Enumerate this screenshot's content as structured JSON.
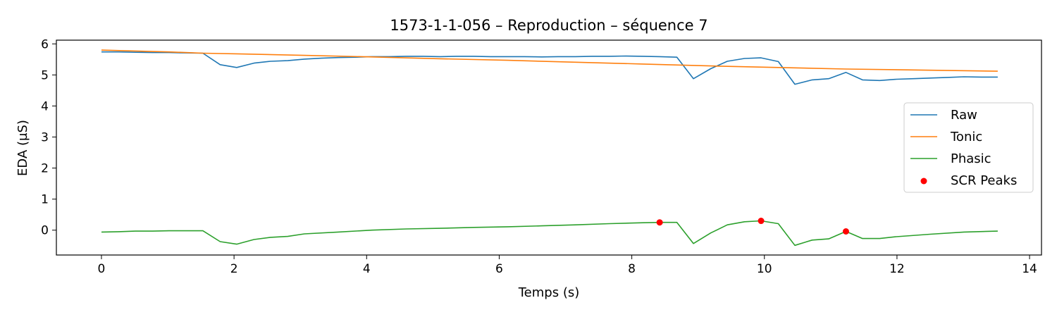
{
  "chart_data": {
    "type": "line",
    "title": "1573-1-1-056 – Reproduction – séquence 7",
    "xlabel": "Temps (s)",
    "ylabel": "EDA (µS)",
    "xlim": [
      -0.68,
      14.18
    ],
    "ylim": [
      -0.8,
      6.12
    ],
    "x_ticks": [
      0,
      2,
      4,
      6,
      8,
      10,
      12,
      14
    ],
    "x_tick_labels": [
      "0",
      "2",
      "4",
      "6",
      "8",
      "10",
      "12",
      "14"
    ],
    "y_ticks": [
      0,
      1,
      2,
      3,
      4,
      5,
      6
    ],
    "y_tick_labels": [
      "0",
      "1",
      "2",
      "3",
      "4",
      "5",
      "6"
    ],
    "grid": false,
    "legend_position": "center-right",
    "series": [
      {
        "name": "Raw",
        "color": "#1f77b4",
        "kind": "line",
        "points": [
          [
            0,
            5.74
          ],
          [
            0.26,
            5.74
          ],
          [
            0.51,
            5.73
          ],
          [
            0.77,
            5.72
          ],
          [
            1.02,
            5.72
          ],
          [
            1.28,
            5.71
          ],
          [
            1.53,
            5.7
          ],
          [
            1.79,
            5.33
          ],
          [
            2.04,
            5.24
          ],
          [
            2.3,
            5.38
          ],
          [
            2.55,
            5.44
          ],
          [
            2.81,
            5.46
          ],
          [
            3.06,
            5.51
          ],
          [
            3.32,
            5.54
          ],
          [
            3.57,
            5.56
          ],
          [
            3.83,
            5.57
          ],
          [
            4.08,
            5.59
          ],
          [
            4.34,
            5.59
          ],
          [
            4.6,
            5.6
          ],
          [
            4.85,
            5.6
          ],
          [
            5.11,
            5.59
          ],
          [
            5.36,
            5.6
          ],
          [
            5.62,
            5.6
          ],
          [
            5.87,
            5.59
          ],
          [
            6.13,
            5.59
          ],
          [
            6.38,
            5.59
          ],
          [
            6.64,
            5.58
          ],
          [
            6.89,
            5.59
          ],
          [
            7.15,
            5.59
          ],
          [
            7.4,
            5.6
          ],
          [
            7.66,
            5.6
          ],
          [
            7.91,
            5.61
          ],
          [
            8.17,
            5.6
          ],
          [
            8.42,
            5.59
          ],
          [
            8.68,
            5.57
          ],
          [
            8.93,
            4.88
          ],
          [
            9.19,
            5.2
          ],
          [
            9.44,
            5.44
          ],
          [
            9.7,
            5.53
          ],
          [
            9.95,
            5.55
          ],
          [
            10.21,
            5.43
          ],
          [
            10.46,
            4.7
          ],
          [
            10.72,
            4.84
          ],
          [
            10.97,
            4.88
          ],
          [
            11.23,
            5.08
          ],
          [
            11.48,
            4.84
          ],
          [
            11.74,
            4.82
          ],
          [
            11.99,
            4.86
          ],
          [
            12.25,
            4.88
          ],
          [
            12.5,
            4.9
          ],
          [
            12.76,
            4.92
          ],
          [
            13.01,
            4.94
          ],
          [
            13.27,
            4.93
          ],
          [
            13.52,
            4.93
          ]
        ]
      },
      {
        "name": "Tonic",
        "color": "#ff7f0e",
        "kind": "line",
        "points": [
          [
            0,
            5.8
          ],
          [
            0.51,
            5.77
          ],
          [
            1.02,
            5.74
          ],
          [
            1.53,
            5.7
          ],
          [
            2.04,
            5.68
          ],
          [
            3.06,
            5.63
          ],
          [
            4.08,
            5.58
          ],
          [
            5.11,
            5.52
          ],
          [
            6.13,
            5.47
          ],
          [
            7.15,
            5.41
          ],
          [
            8.17,
            5.35
          ],
          [
            9.19,
            5.29
          ],
          [
            10.21,
            5.24
          ],
          [
            11.23,
            5.19
          ],
          [
            12.25,
            5.16
          ],
          [
            13.52,
            5.12
          ]
        ]
      },
      {
        "name": "Phasic",
        "color": "#2ca02c",
        "kind": "line",
        "points": [
          [
            0,
            -0.06
          ],
          [
            0.26,
            -0.05
          ],
          [
            0.51,
            -0.03
          ],
          [
            0.77,
            -0.03
          ],
          [
            1.02,
            -0.02
          ],
          [
            1.28,
            -0.02
          ],
          [
            1.53,
            -0.02
          ],
          [
            1.79,
            -0.37
          ],
          [
            2.04,
            -0.45
          ],
          [
            2.3,
            -0.3
          ],
          [
            2.55,
            -0.23
          ],
          [
            2.81,
            -0.2
          ],
          [
            3.06,
            -0.12
          ],
          [
            3.57,
            -0.06
          ],
          [
            4.08,
            0.0
          ],
          [
            4.6,
            0.04
          ],
          [
            5.11,
            0.06
          ],
          [
            5.62,
            0.09
          ],
          [
            6.13,
            0.11
          ],
          [
            6.64,
            0.14
          ],
          [
            7.15,
            0.17
          ],
          [
            7.66,
            0.21
          ],
          [
            8.17,
            0.24
          ],
          [
            8.42,
            0.25
          ],
          [
            8.68,
            0.25
          ],
          [
            8.93,
            -0.43
          ],
          [
            9.19,
            -0.09
          ],
          [
            9.44,
            0.17
          ],
          [
            9.7,
            0.27
          ],
          [
            9.95,
            0.3
          ],
          [
            10.21,
            0.21
          ],
          [
            10.46,
            -0.49
          ],
          [
            10.72,
            -0.32
          ],
          [
            10.97,
            -0.28
          ],
          [
            11.23,
            -0.04
          ],
          [
            11.48,
            -0.27
          ],
          [
            11.74,
            -0.27
          ],
          [
            11.99,
            -0.21
          ],
          [
            12.5,
            -0.13
          ],
          [
            13.01,
            -0.06
          ],
          [
            13.52,
            -0.03
          ]
        ]
      },
      {
        "name": "SCR Peaks",
        "color": "#ff0000",
        "kind": "scatter",
        "points": [
          [
            8.42,
            0.25
          ],
          [
            9.95,
            0.3
          ],
          [
            11.23,
            -0.04
          ]
        ]
      }
    ]
  }
}
